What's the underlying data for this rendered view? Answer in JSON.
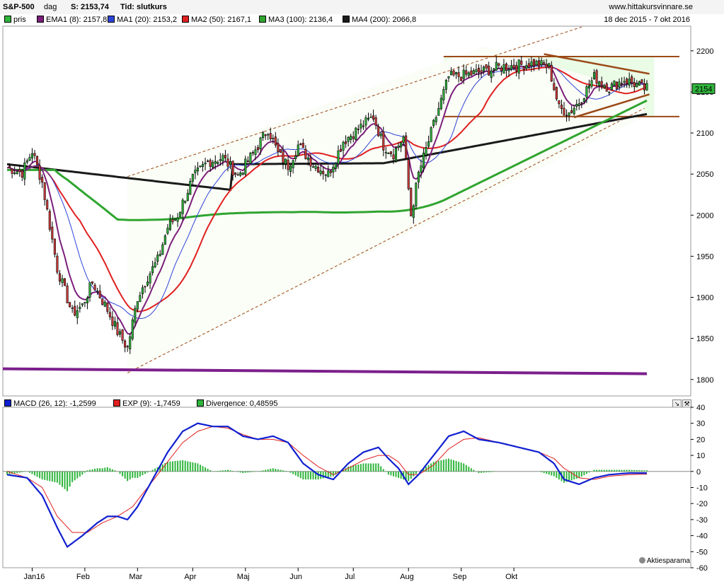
{
  "header": {
    "symbol": "S&P-500",
    "interval": "dag",
    "close_label": "S: 2153,74",
    "type_label": "Tid: slutkurs",
    "site": "www.hittakursvinnare.se",
    "period": "18 dec 2015 - 7 okt 2016"
  },
  "legend": {
    "price": "pris",
    "ema1": "EMA1 (8): 2157,8",
    "ma1": "MA1 (20): 2153,2",
    "ma2": "MA2 (50): 2167,1",
    "ma3": "MA3 (100): 2136,4",
    "ma4": "MA4 (200): 2066,8"
  },
  "macd_legend": {
    "macd": "MACD (26, 12): -1,2599",
    "exp": "EXP (9): -1,7459",
    "div": "Divergence: 0,48595"
  },
  "watermark": "Aktiesparama",
  "last_price_tag": "2154",
  "colors": {
    "up": "#2fb53c",
    "down": "#d23a3a",
    "ema1": "#7b1f7b",
    "ma1": "#2d44d8",
    "ma2": "#e02020",
    "ma3": "#2fa52f",
    "ma4": "#1a1a1a",
    "macd": "#1020d0",
    "exp": "#e02020",
    "trend": "#9b4a18",
    "support": "#7c1f8c",
    "zone": "#eafbe6"
  },
  "chart_data": [
    {
      "type": "candlestick",
      "title": "S&P-500",
      "x": [
        "Jan16",
        "Feb",
        "Mar",
        "Apr",
        "Maj",
        "Jun",
        "Jul",
        "Aug",
        "Sep",
        "Okt"
      ],
      "ylim": [
        1780,
        2230
      ],
      "yticks": [
        1800,
        1850,
        1900,
        1950,
        2000,
        2050,
        2100,
        2150,
        2200
      ],
      "last": 2154,
      "series": [
        {
          "name": "EMA1 (8)",
          "value": 2157.8
        },
        {
          "name": "MA1 (20)",
          "value": 2153.2
        },
        {
          "name": "MA2 (50)",
          "value": 2167.1
        },
        {
          "name": "MA3 (100)",
          "value": 2136.4
        },
        {
          "name": "MA4 (200)",
          "value": 2066.8
        }
      ],
      "close_keypoints": [
        [
          0,
          2058
        ],
        [
          6,
          2052
        ],
        [
          10,
          2078
        ],
        [
          14,
          2040
        ],
        [
          20,
          1935
        ],
        [
          26,
          1880
        ],
        [
          30,
          1890
        ],
        [
          34,
          1918
        ],
        [
          40,
          1885
        ],
        [
          44,
          1858
        ],
        [
          48,
          1838
        ],
        [
          52,
          1900
        ],
        [
          56,
          1925
        ],
        [
          60,
          1945
        ],
        [
          64,
          1985
        ],
        [
          68,
          2000
        ],
        [
          74,
          2045
        ],
        [
          80,
          2065
        ],
        [
          86,
          2070
        ],
        [
          92,
          2048
        ],
        [
          98,
          2075
        ],
        [
          104,
          2105
        ],
        [
          108,
          2075
        ],
        [
          112,
          2060
        ],
        [
          116,
          2085
        ],
        [
          122,
          2062
        ],
        [
          128,
          2050
        ],
        [
          134,
          2090
        ],
        [
          140,
          2105
        ],
        [
          146,
          2120
        ],
        [
          150,
          2085
        ],
        [
          154,
          2075
        ],
        [
          158,
          2095
        ],
        [
          161,
          2000
        ],
        [
          164,
          2050
        ],
        [
          168,
          2090
        ],
        [
          172,
          2130
        ],
        [
          176,
          2168
        ],
        [
          182,
          2170
        ],
        [
          190,
          2175
        ],
        [
          196,
          2180
        ],
        [
          202,
          2182
        ],
        [
          210,
          2185
        ],
        [
          216,
          2180
        ],
        [
          220,
          2130
        ],
        [
          224,
          2125
        ],
        [
          228,
          2138
        ],
        [
          234,
          2168
        ],
        [
          240,
          2155
        ],
        [
          246,
          2165
        ],
        [
          250,
          2160
        ],
        [
          254,
          2154
        ]
      ]
    },
    {
      "type": "macd",
      "ylim": [
        -60,
        40
      ],
      "yticks": [
        40,
        30,
        20,
        10,
        0,
        -10,
        -20,
        -30,
        -40,
        -50,
        -60
      ],
      "macd_keypoints": [
        [
          0,
          -2
        ],
        [
          8,
          -4
        ],
        [
          14,
          -15
        ],
        [
          20,
          -35
        ],
        [
          24,
          -47
        ],
        [
          30,
          -40
        ],
        [
          36,
          -32
        ],
        [
          40,
          -28
        ],
        [
          44,
          -28
        ],
        [
          48,
          -30
        ],
        [
          52,
          -22
        ],
        [
          58,
          -5
        ],
        [
          64,
          12
        ],
        [
          70,
          25
        ],
        [
          76,
          30
        ],
        [
          82,
          28
        ],
        [
          88,
          28
        ],
        [
          94,
          22
        ],
        [
          100,
          20
        ],
        [
          106,
          22
        ],
        [
          112,
          18
        ],
        [
          118,
          5
        ],
        [
          124,
          -2
        ],
        [
          130,
          -5
        ],
        [
          136,
          5
        ],
        [
          142,
          12
        ],
        [
          148,
          15
        ],
        [
          152,
          8
        ],
        [
          156,
          2
        ],
        [
          160,
          -8
        ],
        [
          164,
          -2
        ],
        [
          170,
          10
        ],
        [
          176,
          22
        ],
        [
          182,
          25
        ],
        [
          188,
          20
        ],
        [
          196,
          18
        ],
        [
          204,
          15
        ],
        [
          212,
          12
        ],
        [
          218,
          5
        ],
        [
          222,
          -5
        ],
        [
          228,
          -8
        ],
        [
          234,
          -4
        ],
        [
          240,
          -2
        ],
        [
          248,
          -1
        ],
        [
          254,
          -1
        ]
      ],
      "exp_keypoints": [
        [
          0,
          0
        ],
        [
          8,
          -4
        ],
        [
          14,
          -10
        ],
        [
          20,
          -28
        ],
        [
          26,
          -38
        ],
        [
          32,
          -38
        ],
        [
          38,
          -32
        ],
        [
          44,
          -28
        ],
        [
          50,
          -22
        ],
        [
          56,
          -10
        ],
        [
          62,
          2
        ],
        [
          70,
          18
        ],
        [
          76,
          25
        ],
        [
          82,
          28
        ],
        [
          88,
          27
        ],
        [
          94,
          23
        ],
        [
          100,
          20
        ],
        [
          106,
          20
        ],
        [
          112,
          18
        ],
        [
          118,
          10
        ],
        [
          124,
          3
        ],
        [
          130,
          -2
        ],
        [
          136,
          2
        ],
        [
          142,
          7
        ],
        [
          148,
          10
        ],
        [
          152,
          10
        ],
        [
          156,
          6
        ],
        [
          160,
          -2
        ],
        [
          164,
          -2
        ],
        [
          170,
          4
        ],
        [
          176,
          14
        ],
        [
          182,
          20
        ],
        [
          188,
          21
        ],
        [
          196,
          18
        ],
        [
          204,
          15
        ],
        [
          212,
          12
        ],
        [
          218,
          8
        ],
        [
          222,
          2
        ],
        [
          228,
          -4
        ],
        [
          234,
          -5
        ],
        [
          240,
          -3
        ],
        [
          248,
          -2
        ],
        [
          254,
          -1.7
        ]
      ]
    }
  ]
}
